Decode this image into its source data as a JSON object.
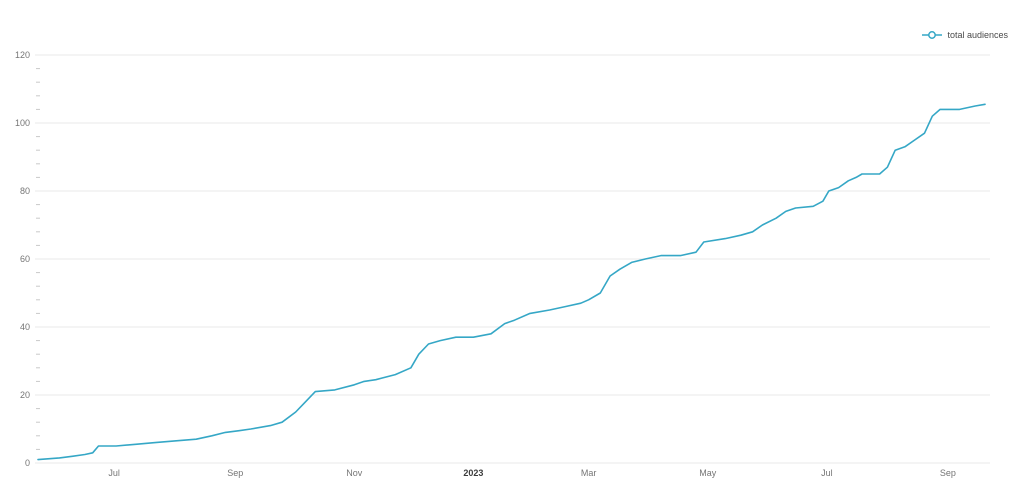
{
  "colors": {
    "background": "#ffffff",
    "grid": "#e9e9e9",
    "axis_label": "#757575",
    "bold_label": "#3c3c3c",
    "minor_tick": "#c9c9c9"
  },
  "chart_data": {
    "type": "line",
    "title": "",
    "legend_position": "top-right",
    "grid": "horizontal",
    "x_domain": [
      "2022-05-23",
      "2023-09-20"
    ],
    "y_axis": {
      "min": 0,
      "max": 120,
      "major_step": 20,
      "minor_step": 4,
      "labels": [
        "0",
        "20",
        "40",
        "60",
        "80",
        "100",
        "120"
      ]
    },
    "x_ticks": [
      {
        "label": "Jul",
        "date": "2022-07-01",
        "bold": false
      },
      {
        "label": "Sep",
        "date": "2022-09-01",
        "bold": false
      },
      {
        "label": "Nov",
        "date": "2022-11-01",
        "bold": false
      },
      {
        "label": "2023",
        "date": "2023-01-01",
        "bold": true
      },
      {
        "label": "Mar",
        "date": "2023-03-01",
        "bold": false
      },
      {
        "label": "May",
        "date": "2023-05-01",
        "bold": false
      },
      {
        "label": "Jul",
        "date": "2023-07-01",
        "bold": false
      },
      {
        "label": "Sep",
        "date": "2023-09-01",
        "bold": false
      }
    ],
    "series": [
      {
        "name": "total audiences",
        "color": "#35a7c6",
        "marker": "open-circle",
        "points": [
          [
            "2022-05-23",
            1
          ],
          [
            "2022-06-03",
            1.5
          ],
          [
            "2022-06-10",
            2
          ],
          [
            "2022-06-16",
            2.5
          ],
          [
            "2022-06-20",
            3
          ],
          [
            "2022-06-23",
            5
          ],
          [
            "2022-07-02",
            5
          ],
          [
            "2022-07-12",
            5.5
          ],
          [
            "2022-07-22",
            6
          ],
          [
            "2022-08-01",
            6.5
          ],
          [
            "2022-08-12",
            7
          ],
          [
            "2022-08-20",
            8
          ],
          [
            "2022-08-27",
            9
          ],
          [
            "2022-09-03",
            9.5
          ],
          [
            "2022-09-09",
            10
          ],
          [
            "2022-09-19",
            11
          ],
          [
            "2022-09-25",
            12
          ],
          [
            "2022-10-02",
            15
          ],
          [
            "2022-10-07",
            18
          ],
          [
            "2022-10-12",
            21
          ],
          [
            "2022-10-22",
            21.5
          ],
          [
            "2022-11-01",
            23
          ],
          [
            "2022-11-06",
            24
          ],
          [
            "2022-11-12",
            24.5
          ],
          [
            "2022-11-22",
            26
          ],
          [
            "2022-11-30",
            28
          ],
          [
            "2022-12-04",
            32
          ],
          [
            "2022-12-09",
            35
          ],
          [
            "2022-12-15",
            36
          ],
          [
            "2022-12-23",
            37
          ],
          [
            "2023-01-01",
            37
          ],
          [
            "2023-01-10",
            38
          ],
          [
            "2023-01-17",
            41
          ],
          [
            "2023-01-22",
            42
          ],
          [
            "2023-01-30",
            44
          ],
          [
            "2023-02-09",
            45
          ],
          [
            "2023-02-17",
            46
          ],
          [
            "2023-02-25",
            47
          ],
          [
            "2023-03-01",
            48
          ],
          [
            "2023-03-07",
            50
          ],
          [
            "2023-03-12",
            55
          ],
          [
            "2023-03-17",
            57
          ],
          [
            "2023-03-23",
            59
          ],
          [
            "2023-03-30",
            60
          ],
          [
            "2023-04-07",
            61
          ],
          [
            "2023-04-17",
            61
          ],
          [
            "2023-04-25",
            62
          ],
          [
            "2023-04-29",
            65
          ],
          [
            "2023-05-10",
            66
          ],
          [
            "2023-05-18",
            67
          ],
          [
            "2023-05-24",
            68
          ],
          [
            "2023-05-29",
            70
          ],
          [
            "2023-06-05",
            72
          ],
          [
            "2023-06-10",
            74
          ],
          [
            "2023-06-15",
            75
          ],
          [
            "2023-06-24",
            75.5
          ],
          [
            "2023-06-29",
            77
          ],
          [
            "2023-07-02",
            80
          ],
          [
            "2023-07-07",
            81
          ],
          [
            "2023-07-12",
            83
          ],
          [
            "2023-07-16",
            84
          ],
          [
            "2023-07-19",
            85
          ],
          [
            "2023-07-28",
            85
          ],
          [
            "2023-08-01",
            87
          ],
          [
            "2023-08-05",
            92
          ],
          [
            "2023-08-10",
            93
          ],
          [
            "2023-08-15",
            95
          ],
          [
            "2023-08-20",
            97
          ],
          [
            "2023-08-24",
            102
          ],
          [
            "2023-08-28",
            104
          ],
          [
            "2023-09-07",
            104
          ],
          [
            "2023-09-15",
            105
          ],
          [
            "2023-09-20",
            105.5
          ]
        ]
      }
    ]
  }
}
